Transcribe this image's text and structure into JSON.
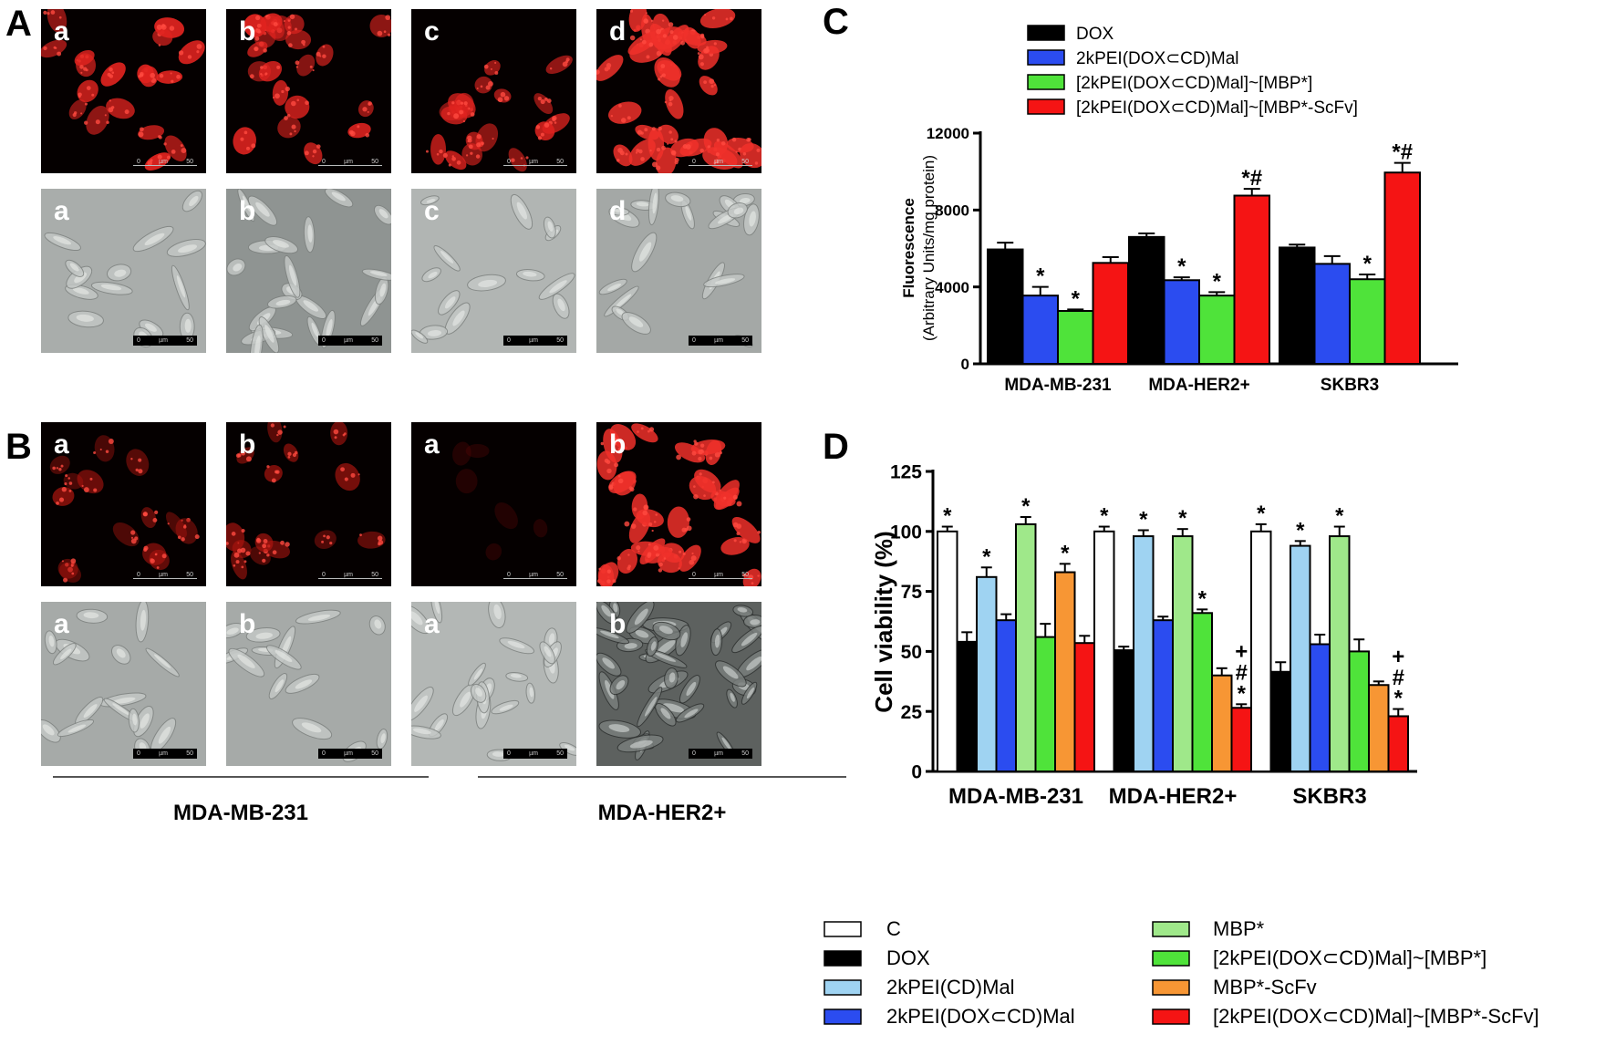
{
  "panels": {
    "A": {
      "letter": "A",
      "fluor_labels": [
        "a",
        "b",
        "c",
        "d"
      ],
      "dic_labels": [
        "a",
        "b",
        "c",
        "d"
      ]
    },
    "B": {
      "letter": "B",
      "fluor_labels": [
        "a",
        "b",
        "a",
        "b"
      ],
      "dic_labels": [
        "a",
        "b",
        "a",
        "b"
      ],
      "group_captions": [
        "MDA-MB-231",
        "MDA-HER2+"
      ]
    },
    "C": {
      "letter": "C"
    },
    "D": {
      "letter": "D"
    }
  },
  "scalebar": {
    "left": "0",
    "unit": "µm",
    "right": "50"
  },
  "colors": {
    "black": "#000000",
    "blue": "#2b4cf0",
    "green": "#4fe33a",
    "red": "#f51414",
    "white": "#ffffff",
    "light_blue": "#9fd3f2",
    "light_green": "#9fe88a",
    "orange": "#f79634"
  },
  "chart_data": [
    {
      "id": "C",
      "type": "bar",
      "ylabel_line1": "Fluorescence",
      "ylabel_line2": "(Arbitrary Units/mg protein)",
      "ylim": [
        0,
        12000
      ],
      "yticks": [
        "0",
        "4000",
        "8000",
        "12000"
      ],
      "categories": [
        "MDA-MB-231",
        "MDA-HER2+",
        "SKBR3"
      ],
      "legend_position": "top",
      "series": [
        {
          "name": "DOX",
          "color": "#000000",
          "values": [
            5950,
            6600,
            6050
          ],
          "errors": [
            350,
            180,
            150
          ],
          "marks": [
            "",
            "",
            ""
          ]
        },
        {
          "name": "2kPEI(DOX⊂CD)Mal",
          "color": "#2b4cf0",
          "values": [
            3550,
            4350,
            5200
          ],
          "errors": [
            450,
            150,
            400
          ],
          "marks": [
            "*",
            "*",
            ""
          ]
        },
        {
          "name": "[2kPEI(DOX⊂CD)Mal]~[MBP*]",
          "color": "#4fe33a",
          "values": [
            2750,
            3550,
            4400
          ],
          "errors": [
            80,
            180,
            250
          ],
          "marks": [
            "*",
            "*",
            "*"
          ]
        },
        {
          "name": "[2kPEI(DOX⊂CD)Mal]~[MBP*-ScFv]",
          "color": "#f51414",
          "values": [
            5250,
            8750,
            9950
          ],
          "errors": [
            300,
            350,
            500
          ],
          "marks": [
            "",
            "*#",
            "*#"
          ]
        }
      ]
    },
    {
      "id": "D",
      "type": "bar",
      "ylabel": "Cell viability (%)",
      "ylim": [
        0,
        125
      ],
      "yticks": [
        "0",
        "25",
        "50",
        "75",
        "100",
        "125"
      ],
      "categories": [
        "MDA-MB-231",
        "MDA-HER2+",
        "SKBR3"
      ],
      "legend_position": "bottom",
      "series": [
        {
          "name": "C",
          "color": "#ffffff",
          "values": [
            100,
            100,
            100
          ],
          "errors": [
            2,
            2,
            3
          ],
          "marks": [
            "*",
            "*",
            "*"
          ]
        },
        {
          "name": "DOX",
          "color": "#000000",
          "values": [
            54,
            50.5,
            41.5
          ],
          "errors": [
            4,
            1.5,
            4
          ],
          "marks": [
            "",
            "",
            ""
          ]
        },
        {
          "name": "2kPEI(CD)Mal",
          "color": "#9fd3f2",
          "values": [
            81,
            98,
            94
          ],
          "errors": [
            4,
            2.5,
            2
          ],
          "marks": [
            "*",
            "*",
            "*"
          ]
        },
        {
          "name": "2kPEI(DOX⊂CD)Mal",
          "color": "#2b4cf0",
          "values": [
            63,
            63,
            53
          ],
          "errors": [
            2.5,
            1.5,
            4
          ],
          "marks": [
            "",
            "",
            ""
          ]
        },
        {
          "name": "MBP*",
          "color": "#9fe88a",
          "values": [
            103,
            98,
            98
          ],
          "errors": [
            3,
            3,
            4
          ],
          "marks": [
            "*",
            "*",
            "*"
          ]
        },
        {
          "name": "[2kPEI(DOX⊂CD)Mal]~[MBP*]",
          "color": "#4fe33a",
          "values": [
            56,
            66,
            50
          ],
          "errors": [
            5.5,
            1.5,
            5
          ],
          "marks": [
            "",
            "*",
            ""
          ]
        },
        {
          "name": "MBP*-ScFv",
          "color": "#f79634",
          "values": [
            83,
            40,
            36
          ],
          "errors": [
            3.5,
            3,
            1.5
          ],
          "marks": [
            "*",
            "",
            ""
          ]
        },
        {
          "name": "[2kPEI(DOX⊂CD)Mal]~[MBP*-ScFv]",
          "color": "#f51414",
          "values": [
            53.5,
            26.5,
            23
          ],
          "errors": [
            3,
            1.5,
            3
          ],
          "marks": [
            "",
            "+#*",
            "+#*"
          ]
        }
      ]
    }
  ]
}
